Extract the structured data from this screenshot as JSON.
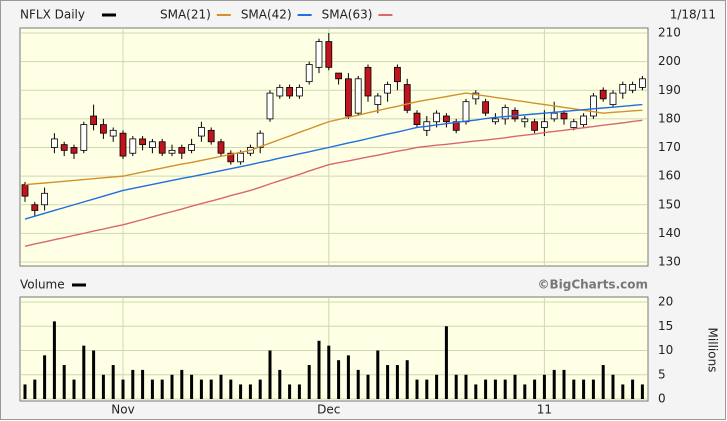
{
  "chart_data": [
    {
      "type": "candlestick",
      "title": "NFLX Daily",
      "date": "1/18/11",
      "ylim": [
        130,
        210
      ],
      "yticks": [
        130,
        140,
        150,
        160,
        170,
        180,
        190,
        200,
        210
      ],
      "grid": true,
      "series": [
        {
          "name": "NFLX Daily",
          "color": "#000000",
          "up_color": "#ffffff",
          "down_color": "#c0141e",
          "open": [
            157,
            150,
            150,
            170,
            171,
            170,
            169,
            181,
            178,
            174,
            175,
            168,
            173,
            170,
            172,
            168,
            170,
            169,
            174,
            176,
            172,
            168,
            165,
            168,
            170,
            180,
            188,
            191,
            188,
            193,
            198,
            207,
            196,
            194,
            182,
            198,
            185,
            189,
            198,
            192,
            182,
            176,
            179,
            181,
            179,
            179,
            187,
            186,
            179,
            180,
            183,
            179,
            179,
            177,
            180,
            182,
            177,
            178,
            181,
            190,
            185,
            189,
            190,
            191
          ],
          "high": [
            158,
            151,
            156,
            175,
            172,
            171,
            179,
            185,
            180,
            177,
            176,
            174,
            174,
            173,
            173,
            171,
            171,
            173,
            179,
            177,
            173,
            169,
            169,
            171,
            176,
            190,
            192,
            192,
            192,
            200,
            208,
            210,
            196,
            196,
            195,
            199,
            189,
            193,
            199,
            194,
            183,
            181,
            183,
            182,
            180,
            187,
            190,
            187,
            182,
            185,
            184,
            181,
            180,
            183,
            186,
            183,
            180,
            182,
            189,
            191,
            190,
            193,
            193,
            195
          ],
          "low": [
            151,
            146,
            148,
            168,
            167,
            166,
            168,
            176,
            173,
            172,
            166,
            167,
            169,
            168,
            167,
            167,
            166,
            168,
            172,
            171,
            167,
            164,
            164,
            167,
            168,
            179,
            187,
            187,
            187,
            192,
            196,
            197,
            192,
            180,
            181,
            186,
            182,
            186,
            190,
            182,
            177,
            174,
            177,
            177,
            175,
            178,
            185,
            181,
            178,
            178,
            179,
            177,
            175,
            174,
            179,
            178,
            176,
            177,
            180,
            186,
            184,
            187,
            189,
            190
          ],
          "close": [
            153,
            148,
            154,
            173,
            169,
            168,
            178,
            178,
            175,
            176,
            167,
            173,
            171,
            172,
            168,
            169,
            168,
            171,
            177,
            172,
            168,
            165,
            168,
            170,
            175,
            189,
            191,
            188,
            191,
            199,
            207,
            198,
            194,
            181,
            194,
            188,
            188,
            192,
            193,
            183,
            178,
            179,
            182,
            179,
            176,
            186,
            189,
            182,
            180,
            184,
            180,
            180,
            176,
            179,
            182,
            180,
            179,
            181,
            188,
            187,
            189,
            192,
            192,
            194
          ]
        },
        {
          "name": "SMA(21)",
          "color": "#d4902a",
          "values": [
            157,
            157.3,
            157.6,
            157.9,
            158.2,
            158.5,
            158.8,
            159.1,
            159.4,
            159.7,
            160,
            160.7,
            161.4,
            162.1,
            162.8,
            163.5,
            164.2,
            164.8,
            165.5,
            166.2,
            166.9,
            167.6,
            168.3,
            169,
            170.3,
            171.5,
            172.8,
            174,
            175.3,
            176.5,
            177.8,
            179,
            179.8,
            180.6,
            181.3,
            182.1,
            182.9,
            183.7,
            184.4,
            185.2,
            186,
            186.6,
            187.2,
            187.8,
            188.4,
            189,
            188.5,
            188,
            187.5,
            187,
            186.5,
            186,
            185.5,
            185,
            184.5,
            184,
            183.5,
            183,
            182.5,
            182,
            182.3,
            182.5,
            182.8,
            183
          ]
        },
        {
          "name": "SMA(42)",
          "color": "#1f6fe0",
          "values": [
            145,
            146,
            147,
            148,
            149,
            150,
            151,
            152,
            153,
            154,
            155,
            155.7,
            156.4,
            157.1,
            157.8,
            158.5,
            159.2,
            159.8,
            160.5,
            161.2,
            161.9,
            162.6,
            163.3,
            164,
            164.8,
            165.5,
            166.3,
            167,
            167.8,
            168.5,
            169.3,
            170,
            170.8,
            171.6,
            172.3,
            173.1,
            173.9,
            174.7,
            175.4,
            176.2,
            177,
            177.4,
            177.9,
            178.3,
            178.8,
            179.2,
            179.6,
            180.1,
            180.5,
            180.8,
            181.1,
            181.4,
            181.7,
            182,
            182.3,
            182.6,
            182.9,
            183.2,
            183.5,
            183.8,
            184.1,
            184.4,
            184.7,
            185
          ]
        },
        {
          "name": "SMA(63)",
          "color": "#d9686e",
          "values": [
            135.5,
            136.3,
            137,
            137.8,
            138.5,
            139.3,
            140,
            140.8,
            141.5,
            142.3,
            143,
            143.9,
            144.8,
            145.8,
            146.7,
            147.6,
            148.5,
            149.5,
            150.4,
            151.3,
            152.2,
            153.2,
            154.1,
            155,
            156.1,
            157.3,
            158.4,
            159.5,
            160.6,
            161.8,
            162.9,
            164,
            164.7,
            165.3,
            166,
            166.7,
            167.3,
            168,
            168.7,
            169.3,
            170,
            170.4,
            170.8,
            171.1,
            171.5,
            171.9,
            172.3,
            172.6,
            173,
            173.4,
            173.9,
            174.3,
            174.7,
            175.2,
            175.6,
            176,
            176.5,
            176.9,
            177.3,
            177.8,
            178.2,
            178.6,
            179.1,
            179.5
          ]
        }
      ]
    },
    {
      "type": "bar",
      "title": "Volume",
      "credit": "©BigCharts.com",
      "ylabel": "Millions",
      "color": "#000000",
      "ylim": [
        0,
        20
      ],
      "yticks": [
        0,
        5,
        10,
        15,
        20
      ],
      "grid": true,
      "categories": [
        null,
        null,
        null,
        null,
        null,
        null,
        null,
        null,
        null,
        null,
        "Nov",
        null,
        null,
        null,
        null,
        null,
        null,
        null,
        null,
        null,
        null,
        null,
        null,
        null,
        null,
        null,
        null,
        null,
        null,
        null,
        null,
        "Dec",
        null,
        null,
        null,
        null,
        null,
        null,
        null,
        null,
        null,
        null,
        null,
        null,
        null,
        null,
        null,
        null,
        null,
        null,
        null,
        null,
        null,
        "11",
        null,
        null,
        null,
        null,
        null,
        null,
        null,
        null,
        null,
        null
      ],
      "values": [
        3,
        4,
        9,
        16,
        7,
        4,
        11,
        10,
        5,
        7,
        4,
        6,
        6,
        4,
        4,
        5,
        6,
        5,
        4,
        4,
        5,
        4,
        3,
        3,
        4,
        10,
        6,
        3,
        3,
        7,
        12,
        11,
        8,
        9,
        6,
        5,
        10,
        7,
        7,
        8,
        4,
        4,
        5,
        15,
        5,
        5,
        3,
        4,
        4,
        4,
        5,
        3,
        4,
        5,
        6,
        6,
        4,
        4,
        4,
        7,
        5,
        3,
        4,
        3
      ]
    }
  ]
}
